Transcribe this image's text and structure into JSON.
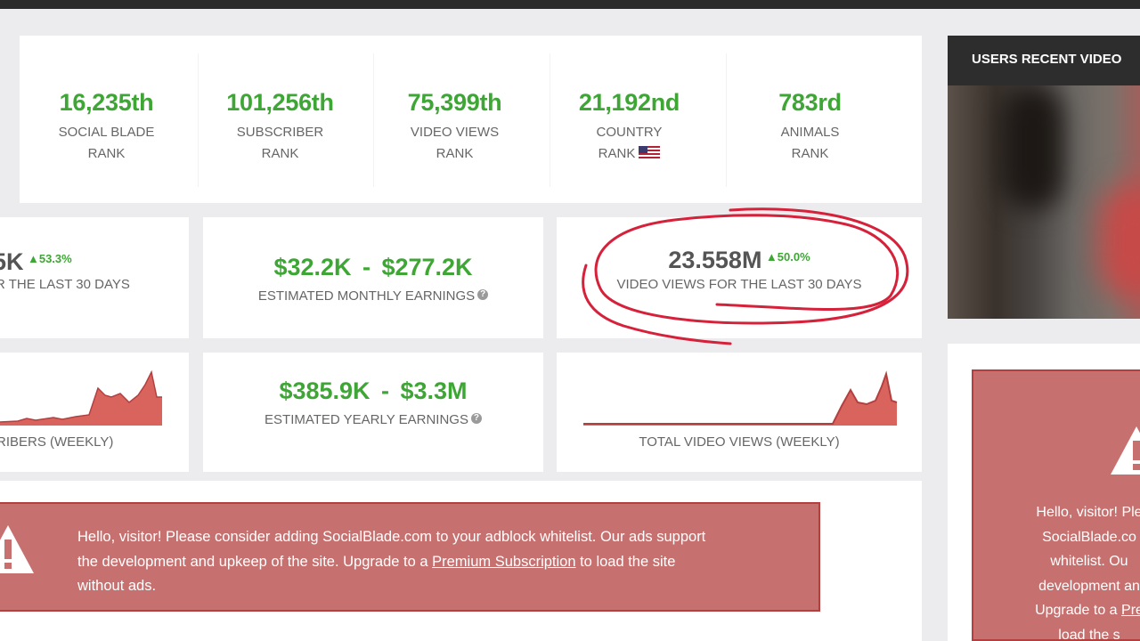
{
  "ranks": [
    {
      "value": "16,235th",
      "label1": "SOCIAL BLADE",
      "label2": "RANK"
    },
    {
      "value": "101,256th",
      "label1": "SUBSCRIBER",
      "label2": "RANK"
    },
    {
      "value": "75,399th",
      "label1": "VIDEO VIEWS",
      "label2": "RANK"
    },
    {
      "value": "21,192nd",
      "label1": "COUNTRY",
      "label2": "RANK"
    },
    {
      "value": "783rd",
      "label1": "ANIMALS",
      "label2": "RANK"
    }
  ],
  "subs": {
    "value": "5K",
    "change": "53.3%",
    "label": "R THE LAST 30 DAYS"
  },
  "monthly": {
    "low": "$32.2K",
    "sep": "-",
    "high": "$277.2K",
    "label": "ESTIMATED MONTHLY EARNINGS",
    "help": "?"
  },
  "views30": {
    "value": "23.558M",
    "change": "50.0%",
    "label": "VIDEO VIEWS FOR THE LAST 30 DAYS"
  },
  "yearly": {
    "low": "$385.9K",
    "sep": "-",
    "high": "$3.3M",
    "label": "ESTIMATED YEARLY EARNINGS",
    "help": "?"
  },
  "charts": {
    "subs_label": "RIBERS (WEEKLY)",
    "views_label": "TOTAL VIDEO VIEWS (WEEKLY)"
  },
  "sidebar": {
    "title": "USERS RECENT VIDEO"
  },
  "alert": {
    "line1": "Hello, visitor! Please consider adding SocialBlade.com to your adblock whitelist. Our ads support",
    "line2a": "the development and upkeep of the site. Upgrade to a ",
    "link": "Premium Subscription",
    "line2b": " to load the site",
    "line3": "without ads."
  },
  "right_alert": {
    "line1": "Hello, visitor! Ple",
    "line2": "SocialBlade.co",
    "line3": "whitelist. Ou",
    "line4": "development an",
    "line5a": "Upgrade to a ",
    "line5link": "Pre",
    "line6": "load the s"
  },
  "colors": {
    "green": "#3ea635",
    "alert": "#c6716f",
    "alert_border": "#b3403f",
    "circle": "#d6213a",
    "chart_fill": "#d9645e"
  }
}
